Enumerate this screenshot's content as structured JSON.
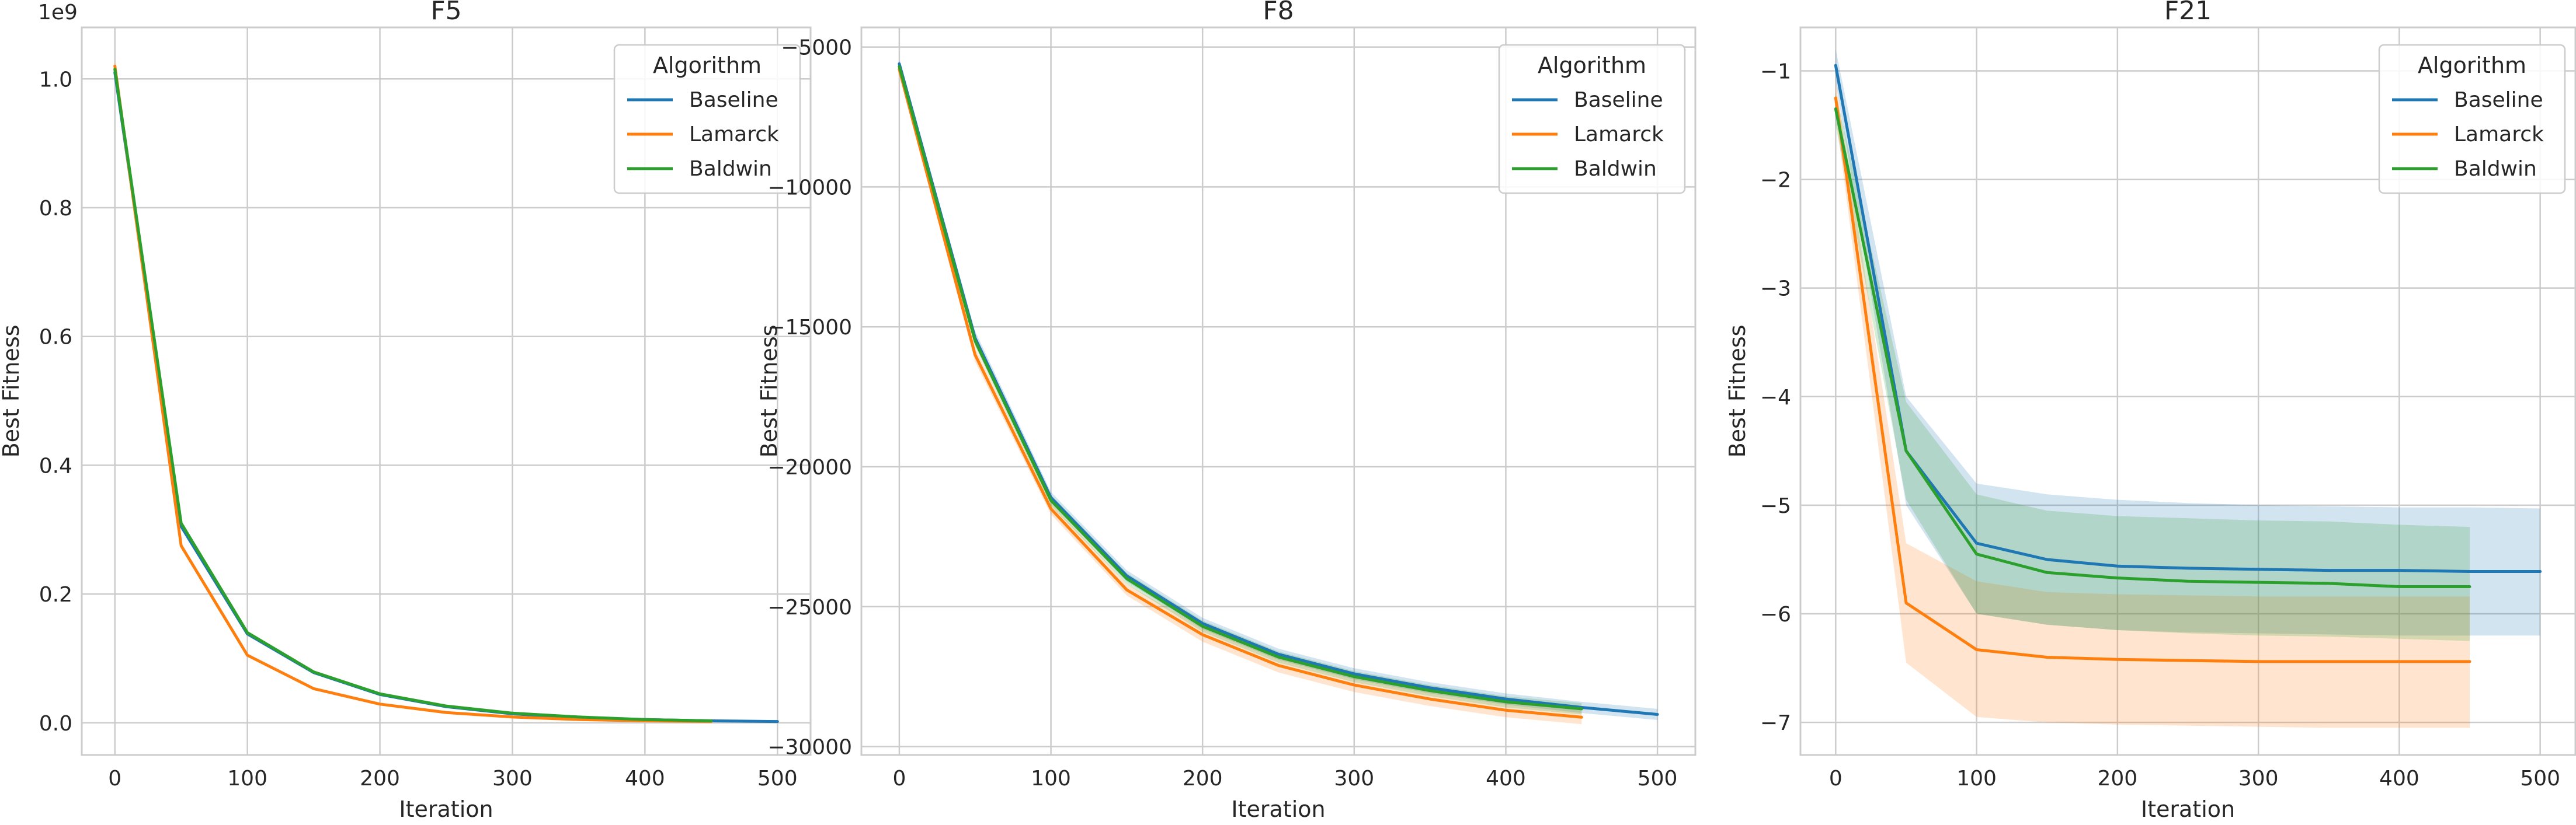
{
  "chart_data": [
    {
      "type": "line",
      "title": "F5",
      "xlabel": "Iteration",
      "ylabel": "Best Fitness",
      "y_offset_label": "1e9",
      "xlim": [
        -25,
        525
      ],
      "ylim": [
        -0.05,
        1.08
      ],
      "xticks": [
        0,
        100,
        200,
        300,
        400,
        500
      ],
      "yticks": [
        0.0,
        0.2,
        0.4,
        0.6,
        0.8,
        1.0
      ],
      "ytick_labels": [
        "0.0",
        "0.2",
        "0.4",
        "0.6",
        "0.8",
        "1.0"
      ],
      "grid": true,
      "legend": {
        "title": "Algorithm",
        "position": "top-right"
      },
      "series": [
        {
          "name": "Baseline",
          "color": "#1f77b4",
          "x": [
            0,
            50,
            100,
            150,
            200,
            250,
            300,
            350,
            400,
            450,
            500
          ],
          "y": [
            1.01,
            0.305,
            0.138,
            0.078,
            0.044,
            0.025,
            0.014,
            0.008,
            0.005,
            0.003,
            0.002
          ]
        },
        {
          "name": "Lamarck",
          "color": "#ff7f0e",
          "x": [
            0,
            50,
            100,
            150,
            200,
            250,
            300,
            350,
            400,
            450
          ],
          "y": [
            1.02,
            0.275,
            0.105,
            0.053,
            0.029,
            0.016,
            0.009,
            0.005,
            0.003,
            0.002
          ]
        },
        {
          "name": "Baldwin",
          "color": "#2ca02c",
          "x": [
            0,
            50,
            100,
            150,
            200,
            250,
            300,
            350,
            400,
            450
          ],
          "y": [
            1.015,
            0.31,
            0.14,
            0.079,
            0.045,
            0.026,
            0.015,
            0.009,
            0.005,
            0.003
          ]
        }
      ]
    },
    {
      "type": "line",
      "title": "F8",
      "xlabel": "Iteration",
      "ylabel": "Best Fitness",
      "xlim": [
        -25,
        525
      ],
      "ylim": [
        -30300,
        -4300
      ],
      "xticks": [
        0,
        100,
        200,
        300,
        400,
        500
      ],
      "yticks": [
        -30000,
        -25000,
        -20000,
        -15000,
        -10000,
        -5000
      ],
      "ytick_labels": [
        "−30000",
        "−25000",
        "−20000",
        "−15000",
        "−10000",
        "−5000"
      ],
      "grid": true,
      "legend": {
        "title": "Algorithm",
        "position": "top-right"
      },
      "series": [
        {
          "name": "Baseline",
          "color": "#1f77b4",
          "x": [
            0,
            50,
            100,
            150,
            200,
            250,
            300,
            350,
            400,
            450,
            500
          ],
          "y": [
            -5600,
            -15400,
            -21100,
            -23900,
            -25600,
            -26700,
            -27400,
            -27900,
            -28300,
            -28600,
            -28850
          ],
          "lower": [
            -5750,
            -15650,
            -21300,
            -24100,
            -25800,
            -26900,
            -27600,
            -28100,
            -28500,
            -28800,
            -29050
          ],
          "upper": [
            -5450,
            -15150,
            -20900,
            -23700,
            -25400,
            -26500,
            -27200,
            -27700,
            -28100,
            -28400,
            -28650
          ]
        },
        {
          "name": "Lamarck",
          "color": "#ff7f0e",
          "x": [
            0,
            50,
            100,
            150,
            200,
            250,
            300,
            350,
            400,
            450
          ],
          "y": [
            -5800,
            -16000,
            -21500,
            -24400,
            -26000,
            -27100,
            -27800,
            -28300,
            -28700,
            -28950
          ],
          "lower": [
            -5950,
            -16250,
            -21700,
            -24600,
            -26250,
            -27350,
            -28050,
            -28550,
            -28950,
            -29200
          ],
          "upper": [
            -5650,
            -15750,
            -21300,
            -24200,
            -25750,
            -26850,
            -27550,
            -28050,
            -28450,
            -28700
          ]
        },
        {
          "name": "Baldwin",
          "color": "#2ca02c",
          "x": [
            0,
            50,
            100,
            150,
            200,
            250,
            300,
            350,
            400,
            450
          ],
          "y": [
            -5700,
            -15500,
            -21200,
            -24000,
            -25700,
            -26800,
            -27500,
            -28000,
            -28400,
            -28650
          ],
          "lower": [
            -5850,
            -15700,
            -21400,
            -24200,
            -25900,
            -27000,
            -27700,
            -28200,
            -28600,
            -28850
          ],
          "upper": [
            -5550,
            -15300,
            -21000,
            -23800,
            -25500,
            -26600,
            -27300,
            -27800,
            -28200,
            -28450
          ]
        }
      ]
    },
    {
      "type": "line",
      "title": "F21",
      "xlabel": "Iteration",
      "ylabel": "Best Fitness",
      "xlim": [
        -25,
        525
      ],
      "ylim": [
        -7.3,
        -0.6
      ],
      "xticks": [
        0,
        100,
        200,
        300,
        400,
        500
      ],
      "yticks": [
        -7,
        -6,
        -5,
        -4,
        -3,
        -2,
        -1
      ],
      "ytick_labels": [
        "−7",
        "−6",
        "−5",
        "−4",
        "−3",
        "−2",
        "−1"
      ],
      "grid": true,
      "legend": {
        "title": "Algorithm",
        "position": "top-right"
      },
      "series": [
        {
          "name": "Baseline",
          "color": "#1f77b4",
          "x": [
            0,
            50,
            100,
            150,
            200,
            250,
            300,
            350,
            400,
            450,
            500
          ],
          "y": [
            -0.95,
            -4.5,
            -5.35,
            -5.5,
            -5.56,
            -5.58,
            -5.59,
            -5.6,
            -5.6,
            -5.61,
            -5.61
          ],
          "lower": [
            -1.1,
            -5.0,
            -6.0,
            -6.1,
            -6.15,
            -6.17,
            -6.18,
            -6.19,
            -6.2,
            -6.2,
            -6.2
          ],
          "upper": [
            -0.8,
            -4.0,
            -4.8,
            -4.9,
            -4.95,
            -4.98,
            -5.0,
            -5.01,
            -5.02,
            -5.02,
            -5.03
          ]
        },
        {
          "name": "Lamarck",
          "color": "#ff7f0e",
          "x": [
            0,
            50,
            100,
            150,
            200,
            250,
            300,
            350,
            400,
            450
          ],
          "y": [
            -1.25,
            -5.9,
            -6.33,
            -6.4,
            -6.42,
            -6.43,
            -6.44,
            -6.44,
            -6.44,
            -6.44
          ],
          "lower": [
            -1.4,
            -6.45,
            -6.95,
            -7.0,
            -7.02,
            -7.03,
            -7.04,
            -7.05,
            -7.05,
            -7.05
          ],
          "upper": [
            -1.1,
            -5.35,
            -5.7,
            -5.8,
            -5.82,
            -5.83,
            -5.84,
            -5.84,
            -5.84,
            -5.84
          ]
        },
        {
          "name": "Baldwin",
          "color": "#2ca02c",
          "x": [
            0,
            50,
            100,
            150,
            200,
            250,
            300,
            350,
            400,
            450
          ],
          "y": [
            -1.35,
            -4.5,
            -5.45,
            -5.62,
            -5.67,
            -5.7,
            -5.71,
            -5.72,
            -5.75,
            -5.75
          ],
          "lower": [
            -1.5,
            -4.95,
            -6.0,
            -6.1,
            -6.15,
            -6.18,
            -6.2,
            -6.21,
            -6.23,
            -6.25
          ],
          "upper": [
            -1.2,
            -4.05,
            -4.9,
            -5.05,
            -5.1,
            -5.12,
            -5.14,
            -5.15,
            -5.18,
            -5.2
          ]
        }
      ]
    }
  ]
}
